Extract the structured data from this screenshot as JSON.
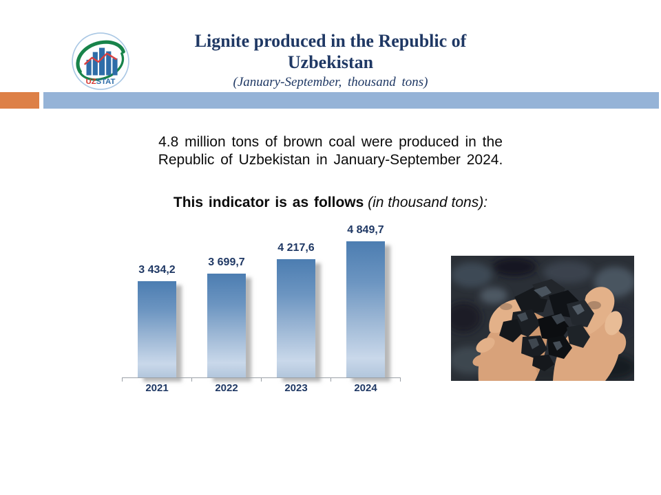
{
  "header": {
    "logo": {
      "uz": "UZ",
      "stat": "STAT"
    },
    "title_line1": "Lignite produced in the Republic of",
    "title_line2": "Uzbekistan",
    "subtitle": "(January-September, thousand tons)"
  },
  "colors": {
    "title_navy": "#1F3864",
    "band_blue": "#95B3D7",
    "accent_orange": "#DD8047",
    "bar_gradient_top": "#4C7DB1",
    "bar_gradient_bottom": "#B2C6DC",
    "value_label_navy": "#1F3864"
  },
  "intro": {
    "line1": "4.8 million tons of brown coal were produced in the",
    "line2": "Republic of Uzbekistan in January-September 2024."
  },
  "indicator_heading": {
    "bold_text": "This indicator is as follows",
    "italic_text": " (in thousand tons):"
  },
  "chart_data": {
    "type": "bar",
    "categories": [
      "2021",
      "2022",
      "2023",
      "2024"
    ],
    "values": [
      3434.2,
      3699.7,
      4217.6,
      4849.7
    ],
    "value_labels": [
      "3 434,2",
      "3 699,7",
      "4 217,6",
      "4 849,7"
    ],
    "title": "This indicator is as follows (in thousand tons):",
    "xlabel": "",
    "ylabel": "",
    "unit": "thousand tons",
    "ylim": [
      0,
      5500
    ],
    "grid": false,
    "legend": false
  },
  "photo": {
    "description": "hands holding lumps of coal"
  }
}
